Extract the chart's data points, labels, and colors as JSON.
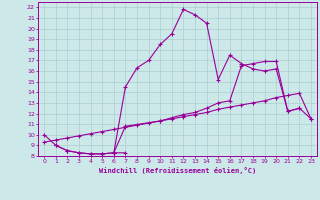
{
  "xlabel": "Windchill (Refroidissement éolien,°C)",
  "bg_color": "#cce8e8",
  "line_color": "#990099",
  "grid_color": "#aacfcf",
  "xlim": [
    -0.5,
    23.5
  ],
  "ylim": [
    8,
    22.5
  ],
  "xticks": [
    0,
    1,
    2,
    3,
    4,
    5,
    6,
    7,
    8,
    9,
    10,
    11,
    12,
    13,
    14,
    15,
    16,
    17,
    18,
    19,
    20,
    21,
    22,
    23
  ],
  "yticks": [
    8,
    9,
    10,
    11,
    12,
    13,
    14,
    15,
    16,
    17,
    18,
    19,
    20,
    21,
    22
  ],
  "line1_x": [
    0,
    1,
    2,
    3,
    4,
    5,
    6,
    7
  ],
  "line1_y": [
    10,
    9,
    8.5,
    8.3,
    8.2,
    8.2,
    8.3,
    8.3
  ],
  "line2_x": [
    0,
    1,
    2,
    3,
    4,
    5,
    6,
    7,
    8,
    9,
    10,
    11,
    12,
    13,
    14,
    15,
    16,
    17,
    18,
    19,
    20,
    21,
    22,
    23
  ],
  "line2_y": [
    9.3,
    9.5,
    9.7,
    9.9,
    10.1,
    10.3,
    10.5,
    10.7,
    10.9,
    11.1,
    11.3,
    11.5,
    11.7,
    11.9,
    12.1,
    12.4,
    12.6,
    12.8,
    13.0,
    13.2,
    13.5,
    13.7,
    13.9,
    11.5
  ],
  "line3_x": [
    1,
    2,
    3,
    4,
    5,
    6,
    7,
    8,
    9,
    10,
    11,
    12,
    13,
    14,
    15,
    16,
    17,
    18,
    19,
    20,
    21,
    22
  ],
  "line3_y": [
    9.0,
    8.5,
    8.3,
    8.2,
    8.2,
    8.3,
    14.5,
    16.3,
    17.0,
    18.5,
    19.5,
    21.8,
    21.3,
    20.5,
    15.2,
    17.5,
    16.7,
    16.2,
    16.0,
    16.2,
    12.2,
    12.5
  ],
  "line4_x": [
    6,
    7,
    10,
    11,
    12,
    13,
    14,
    15,
    16,
    17,
    18,
    19,
    20,
    21,
    22,
    23
  ],
  "line4_y": [
    8.3,
    10.8,
    11.3,
    11.6,
    11.9,
    12.1,
    12.5,
    13.0,
    13.2,
    16.5,
    16.7,
    16.9,
    16.9,
    12.2,
    12.5,
    11.5
  ]
}
